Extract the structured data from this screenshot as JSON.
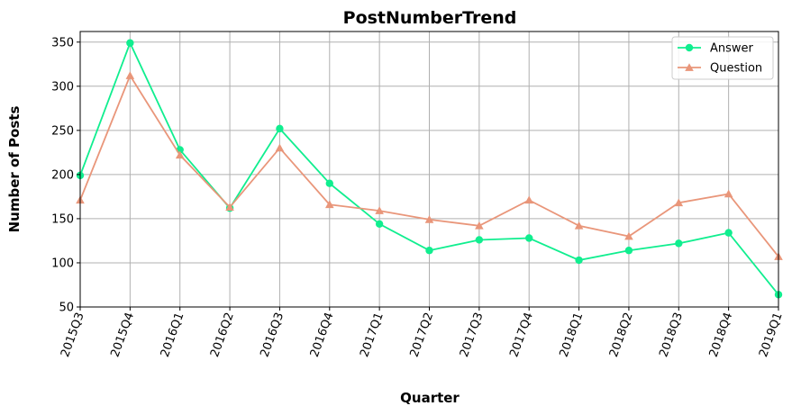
{
  "chart_data": {
    "type": "line",
    "title": "PostNumberTrend",
    "xlabel": "Quarter",
    "ylabel": "Number of Posts",
    "categories": [
      "2015Q3",
      "2015Q4",
      "2016Q1",
      "2016Q2",
      "2016Q3",
      "2016Q4",
      "2017Q1",
      "2017Q2",
      "2017Q3",
      "2017Q4",
      "2018Q1",
      "2018Q2",
      "2018Q3",
      "2018Q4",
      "2019Q1"
    ],
    "series": [
      {
        "name": "Answer",
        "color": "#10ee8f",
        "marker": "circle",
        "values": [
          199,
          349,
          228,
          162,
          252,
          190,
          144,
          114,
          126,
          128,
          103,
          114,
          122,
          134,
          64
        ]
      },
      {
        "name": "Question",
        "color": "#e9967a",
        "marker": "triangle",
        "values": [
          171,
          312,
          222,
          163,
          230,
          166,
          159,
          149,
          142,
          171,
          142,
          130,
          168,
          178,
          107
        ]
      }
    ],
    "ylim": [
      50,
      362
    ],
    "yticks": [
      50,
      100,
      150,
      200,
      250,
      300,
      350
    ],
    "grid": true,
    "legend": "top-right"
  }
}
